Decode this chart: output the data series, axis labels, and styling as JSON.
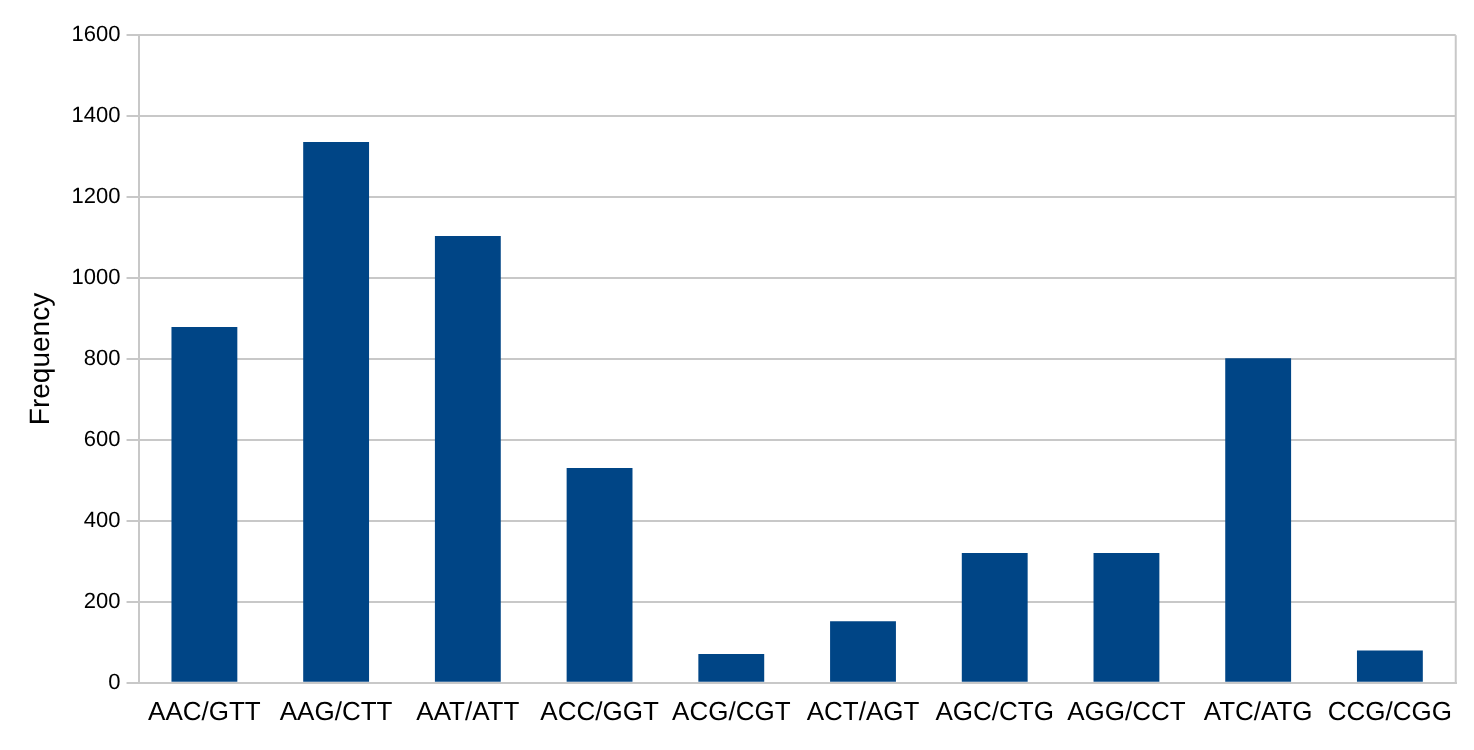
{
  "chart_data": {
    "type": "bar",
    "ylabel": "Frequency",
    "categories": [
      "AAC/GTT",
      "AAG/CTT",
      "AAT/ATT",
      "ACC/GGT",
      "ACG/CGT",
      "ACT/AGT",
      "AGC/CTG",
      "AGG/CCT",
      "ATC/ATG",
      "CCG/CGG"
    ],
    "values": [
      879,
      1336,
      1104,
      531,
      71,
      152,
      321,
      321,
      802,
      80
    ],
    "color": "#004586",
    "ylim": [
      0,
      1600
    ],
    "yticks": [
      0,
      200,
      400,
      600,
      800,
      1000,
      1200,
      1400,
      1600
    ],
    "grid": "y"
  }
}
